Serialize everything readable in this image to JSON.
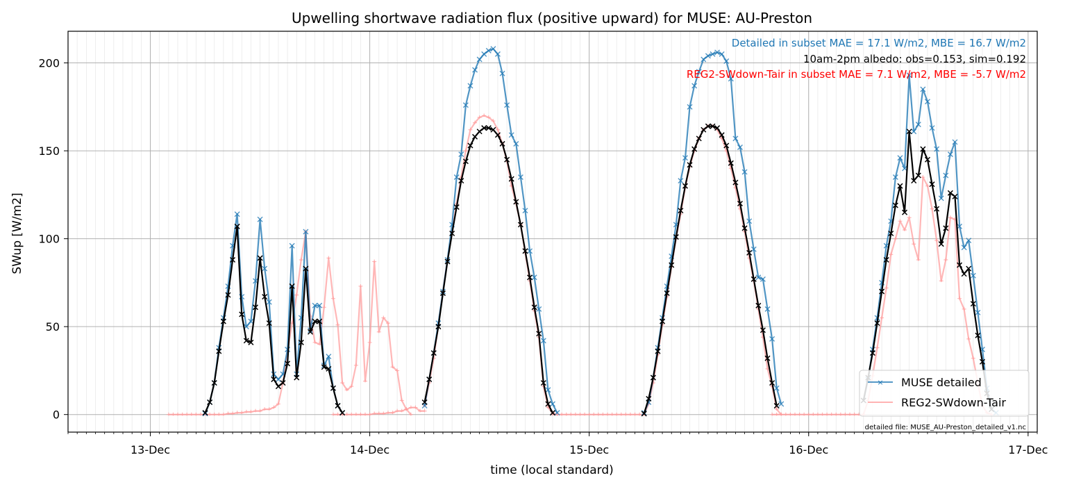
{
  "chart_data": {
    "type": "line",
    "title": "Upwelling shortwave radiation flux (positive upward) for MUSE: AU-Preston",
    "xlabel": "time (local standard)",
    "ylabel": "SWup [W/m2]",
    "x_tick_labels": [
      "13-Dec",
      "14-Dec",
      "15-Dec",
      "16-Dec",
      "17-Dec"
    ],
    "y_ticks": [
      0,
      50,
      100,
      150,
      200
    ],
    "xlim": [
      "2024-12-12T15:00",
      "2024-12-17T01:00"
    ],
    "ylim": [
      -10,
      218
    ],
    "grid": true,
    "legend_position": "lower right",
    "annotations": {
      "detailed": "Detailed in subset MAE = 17.1 W/m2, MBE = 16.7 W/m2",
      "albedo": "10am-2pm albedo: obs=0.153, sim=0.192",
      "reg2": "REG2-SWdown-Tair in subset MAE = 7.1 W/m2, MBE = -5.7 W/m2",
      "file": "detailed file: MUSE_AU-Preston_detailed_v1.nc"
    },
    "colors": {
      "detailed": "#1f77b4",
      "detailed_annot": "#1f77b4",
      "reg2": "#ff9999",
      "reg2_annot": "#ff0000",
      "obs": "#000000"
    },
    "series": [
      {
        "name": "MUSE detailed",
        "days": [
          {
            "day": "13-Dec",
            "start": "06:00",
            "values": [
              0.5,
              7,
              18,
              38,
              55,
              73,
              96,
              114,
              67,
              50,
              53,
              76,
              111,
              83,
              64,
              23,
              20,
              23,
              37,
              96,
              23,
              55,
              104,
              48,
              62,
              62,
              28,
              33,
              15,
              5,
              1
            ]
          },
          {
            "day": "14-Dec",
            "start": "06:00",
            "values": [
              5,
              20,
              35,
              52,
              70,
              88,
              108,
              135,
              148,
              176,
              187,
              196,
              202,
              205,
              207,
              208,
              205,
              194,
              176,
              159,
              154,
              135,
              116,
              93,
              78,
              60,
              42,
              14,
              6,
              1
            ]
          },
          {
            "day": "15-Dec",
            "start": "06:00",
            "values": [
              1,
              7,
              21,
              38,
              55,
              73,
              90,
              108,
              133,
              146,
              175,
              187,
              195,
              202,
              204,
              205,
              206,
              205,
              201,
              191,
              157,
              152,
              138,
              110,
              94,
              78,
              77,
              60,
              43,
              15,
              6
            ]
          },
          {
            "day": "16-Dec",
            "start": "06:00",
            "values": [
              8,
              20,
              37,
              55,
              75,
              96,
              110,
              135,
              146,
              140,
              193,
              161,
              165,
              185,
              178,
              163,
              151,
              123,
              136,
              148,
              155,
              107,
              95,
              99,
              79,
              58,
              37,
              15,
              3,
              1
            ]
          }
        ]
      },
      {
        "name": "REG2-SWdown-Tair",
        "days": [
          {
            "day": "13-Dec",
            "start": "02:00",
            "values": [
              0,
              0,
              0,
              0,
              0,
              0,
              0,
              0,
              0,
              0,
              0,
              0,
              0,
              0.5,
              0.5,
              1,
              1,
              1.5,
              1.5,
              2,
              2,
              3,
              3,
              4,
              6,
              18,
              36,
              52,
              68,
              88,
              104,
              56,
              41,
              40,
              61,
              89,
              66,
              51,
              18,
              14,
              16,
              28,
              73,
              19,
              41,
              87,
              47,
              55,
              52,
              27,
              25,
              8,
              3,
              0
            ]
          },
          {
            "day": "13-Dec",
            "start": "20:00",
            "values": [
              0,
              0,
              0,
              0,
              0,
              0,
              0,
              0,
              0,
              0.5,
              0.5,
              0.5,
              1,
              1,
              2,
              2,
              3,
              4,
              4,
              2,
              2
            ]
          },
          {
            "day": "14-Dec",
            "start": "06:00",
            "values": [
              5,
              18,
              32,
              51,
              70,
              88,
              104,
              120,
              135,
              150,
              162,
              166,
              169,
              170,
              169,
              167,
              162,
              154,
              144,
              130,
              120,
              108,
              92,
              76,
              59,
              44,
              16,
              4,
              1,
              0
            ]
          },
          {
            "day": "14-Dec",
            "start": "20:00",
            "values": [
              0,
              0,
              0,
              0,
              0,
              0,
              0,
              0,
              0,
              0,
              0,
              0,
              0,
              0,
              0,
              0,
              0,
              0,
              0,
              0,
              0
            ]
          },
          {
            "day": "15-Dec",
            "start": "06:00",
            "values": [
              0,
              6,
              18,
              34,
              51,
              67,
              84,
              100,
              114,
              129,
              141,
              150,
              157,
              162,
              164,
              164,
              162,
              157,
              150,
              140,
              129,
              117,
              104,
              89,
              76,
              60,
              44,
              26,
              16,
              3,
              0
            ]
          },
          {
            "day": "15-Dec",
            "start": "20:00",
            "values": [
              0,
              0,
              0,
              0,
              0,
              0,
              0,
              0,
              0,
              0,
              0,
              0,
              0,
              0,
              0,
              0,
              0,
              0,
              0,
              0,
              0
            ]
          },
          {
            "day": "16-Dec",
            "start": "06:00",
            "values": [
              0,
              8,
              22,
              38,
              55,
              72,
              91,
              100,
              110,
              105,
              112,
              97,
              88,
              135,
              130,
              117,
              99,
              76,
              88,
              112,
              111,
              66,
              60,
              43,
              32,
              18,
              5,
              1,
              0
            ]
          }
        ]
      },
      {
        "name": "obs",
        "days": [
          {
            "day": "13-Dec",
            "start": "06:00",
            "values": [
              1,
              7,
              18,
              36,
              53,
              68,
              88,
              107,
              57,
              42,
              41,
              61,
              89,
              67,
              52,
              20,
              16,
              18,
              29,
              73,
              21,
              41,
              83,
              47,
              53,
              53,
              27,
              26,
              15,
              5,
              1
            ]
          },
          {
            "day": "14-Dec",
            "start": "06:00",
            "values": [
              7,
              20,
              35,
              50,
              69,
              87,
              103,
              118,
              133,
              144,
              153,
              158,
              161,
              163,
              163,
              162,
              159,
              154,
              145,
              134,
              121,
              108,
              93,
              78,
              61,
              46,
              18,
              6,
              1
            ]
          },
          {
            "day": "15-Dec",
            "start": "06:00",
            "values": [
              0.5,
              9,
              21,
              36,
              53,
              69,
              85,
              101,
              116,
              130,
              142,
              151,
              157,
              162,
              164,
              164,
              163,
              159,
              153,
              143,
              132,
              120,
              106,
              92,
              77,
              62,
              48,
              32,
              18,
              5
            ]
          },
          {
            "day": "16-Dec",
            "start": "06:00",
            "values": [
              8,
              21,
              35,
              52,
              70,
              88,
              103,
              119,
              130,
              115,
              161,
              133,
              136,
              151,
              145,
              131,
              117,
              97,
              106,
              126,
              124,
              85,
              80,
              83,
              63,
              45,
              30,
              12,
              3
            ]
          }
        ]
      }
    ]
  }
}
